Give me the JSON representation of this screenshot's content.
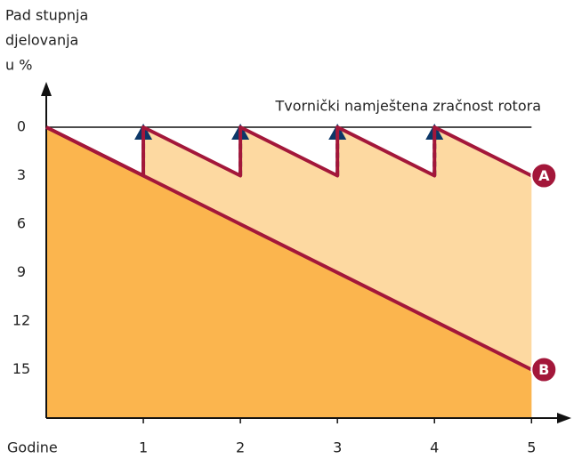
{
  "chart_data": {
    "type": "line",
    "y_label": [
      "Pad stupnja",
      "djelovanja",
      "u %"
    ],
    "x_label": "Godine",
    "annotation": "Tvornički namještena zračnost rotora",
    "xlim": [
      0,
      5.3
    ],
    "xticks": [
      1,
      2,
      3,
      4,
      5
    ],
    "ylim": [
      18,
      0
    ],
    "yticks": [
      0,
      3,
      6,
      9,
      12,
      15
    ],
    "series": [
      {
        "name": "A",
        "color": "#a3173a",
        "fill": "#fdd9a1",
        "x": [
          0,
          1,
          1,
          2,
          2,
          3,
          3,
          4,
          4,
          5
        ],
        "values": [
          0,
          3,
          0,
          3,
          0,
          3,
          0,
          3,
          0,
          3
        ]
      },
      {
        "name": "B",
        "color": "#a3173a",
        "fill": "#fbb54e",
        "x": [
          0,
          5
        ],
        "values": [
          0,
          15
        ]
      }
    ],
    "arrow_color": "#0c3768"
  }
}
